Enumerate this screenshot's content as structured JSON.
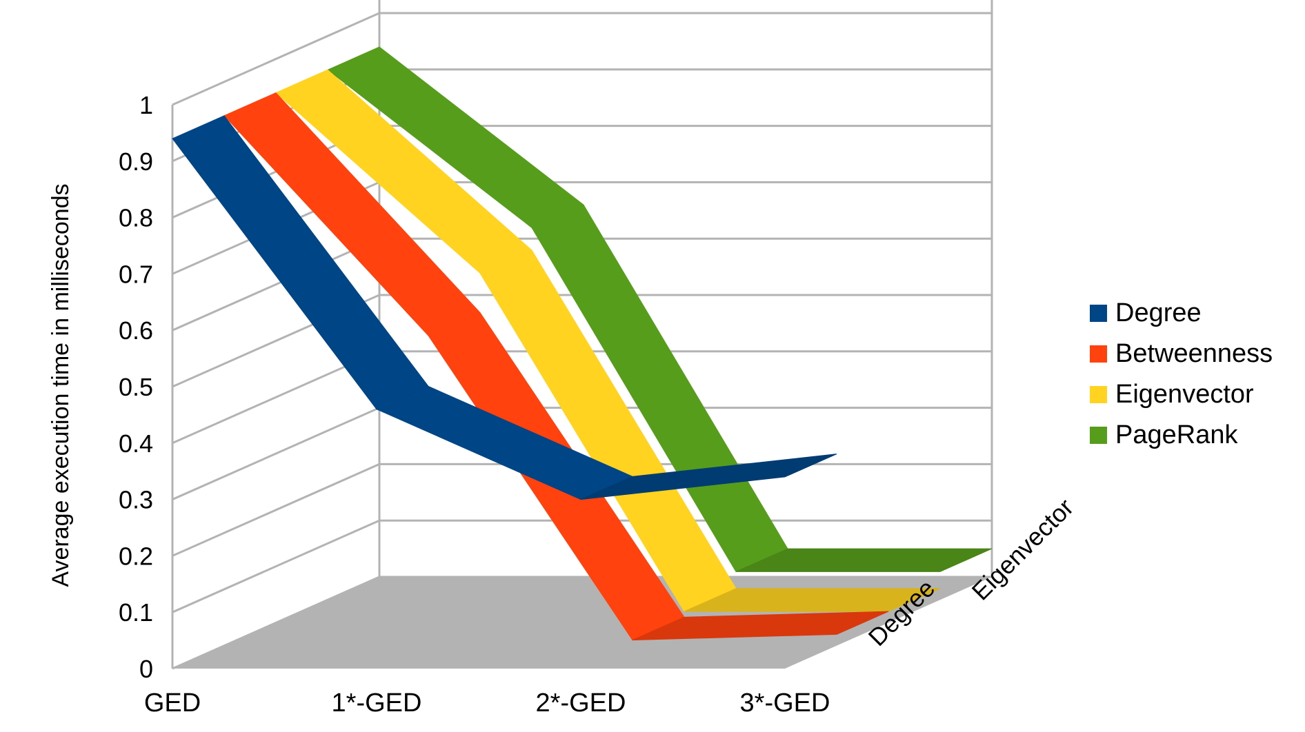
{
  "chart_data": {
    "type": "line",
    "subtype": "3d-ribbon",
    "title": "",
    "xlabel": "",
    "ylabel": "Average execution time in milliseconds",
    "ylim": [
      0,
      1
    ],
    "yticks": [
      "0",
      "0.1",
      "0.2",
      "0.3",
      "0.4",
      "0.5",
      "0.6",
      "0.7",
      "0.8",
      "0.9",
      "1"
    ],
    "categories": [
      "GED",
      "1*-GED",
      "2*-GED",
      "3*-GED"
    ],
    "depth_labels": [
      "Degree",
      "Eigenvector"
    ],
    "grid": true,
    "legend_position": "right",
    "series": [
      {
        "name": "Degree",
        "color": "#004586",
        "values": [
          0.94,
          0.46,
          0.3,
          0.34
        ]
      },
      {
        "name": "Betweenness",
        "color": "#ff420e",
        "values": [
          0.94,
          0.55,
          0.01,
          0.02
        ]
      },
      {
        "name": "Eigenvector",
        "color": "#ffd320",
        "values": [
          0.94,
          0.62,
          0.02,
          0.02
        ]
      },
      {
        "name": "PageRank",
        "color": "#579d1c",
        "values": [
          0.94,
          0.66,
          0.05,
          0.05
        ]
      }
    ]
  }
}
